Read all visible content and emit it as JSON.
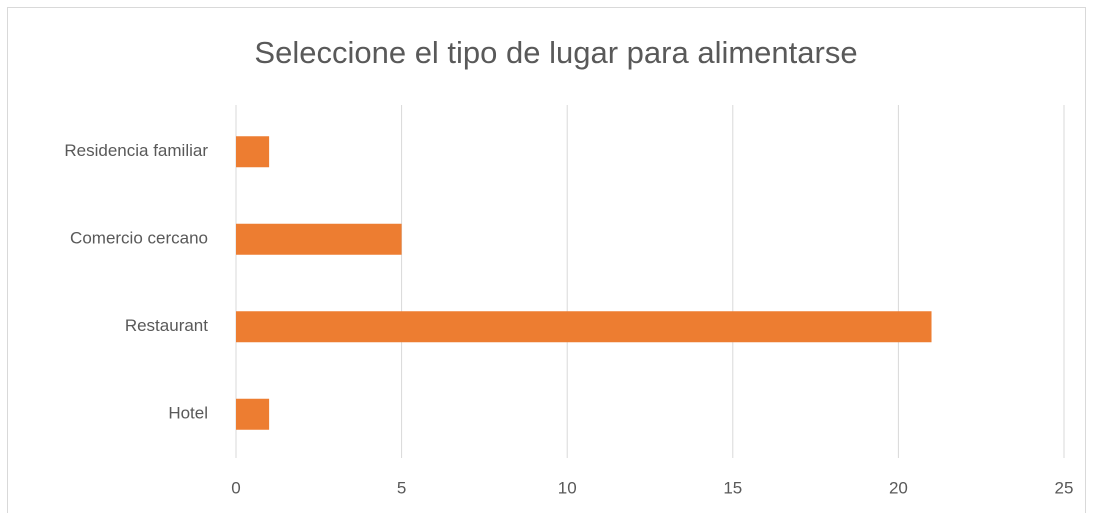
{
  "chart_data": {
    "type": "bar",
    "orientation": "horizontal",
    "title": "Seleccione el tipo de lugar para alimentarse",
    "categories": [
      "Residencia familiar",
      "Comercio cercano",
      "Restaurant",
      "Hotel"
    ],
    "values": [
      1,
      5,
      21,
      1
    ],
    "color": "#ed7d31",
    "xlim": [
      0,
      25
    ],
    "xticks": [
      0,
      5,
      10,
      15,
      20,
      25
    ],
    "grid": true
  }
}
